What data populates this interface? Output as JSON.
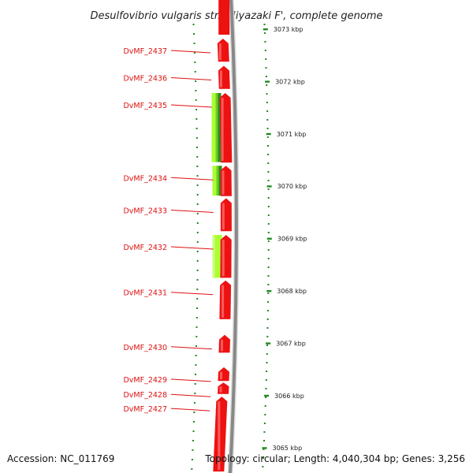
{
  "title": "Desulfovibrio vulgaris str. 'Miyazaki F', complete genome",
  "footer": {
    "accession": "Accession: NC_011769",
    "summary": "Topology: circular; Length: 4,040,304 bp; Genes: 3,256"
  },
  "colors": {
    "gene": "#ee1111",
    "gene_highlight": "#ff9a9a",
    "label": "#dd1111",
    "backbone": "#888888",
    "tick": "#228822",
    "light_green": "#aaff33",
    "dark_green": "#2c8a1e"
  },
  "genes": [
    {
      "id": "DvMF_2437",
      "label": "DvMF_2437",
      "start_kbp": 3072.82,
      "end_kbp": 3072.38,
      "strand": "+"
    },
    {
      "id": "DvMF_2436",
      "label": "DvMF_2436",
      "start_kbp": 3072.3,
      "end_kbp": 3071.86,
      "strand": "+"
    },
    {
      "id": "DvMF_2435",
      "label": "DvMF_2435",
      "start_kbp": 3071.78,
      "end_kbp": 3070.45,
      "strand": "+"
    },
    {
      "id": "DvMF_2434",
      "label": "DvMF_2434",
      "start_kbp": 3070.39,
      "end_kbp": 3069.81,
      "strand": "+"
    },
    {
      "id": "DvMF_2433",
      "label": "DvMF_2433",
      "start_kbp": 3069.77,
      "end_kbp": 3069.14,
      "strand": "+"
    },
    {
      "id": "DvMF_2432",
      "label": "DvMF_2432",
      "start_kbp": 3069.07,
      "end_kbp": 3068.25,
      "strand": "+"
    },
    {
      "id": "DvMF_2431",
      "label": "DvMF_2431",
      "start_kbp": 3068.2,
      "end_kbp": 3067.46,
      "strand": "+"
    },
    {
      "id": "DvMF_2430",
      "label": "DvMF_2430",
      "start_kbp": 3067.16,
      "end_kbp": 3066.82,
      "strand": "+"
    },
    {
      "id": "DvMF_2429",
      "label": "DvMF_2429",
      "start_kbp": 3066.54,
      "end_kbp": 3066.28,
      "strand": "+"
    },
    {
      "id": "DvMF_2428",
      "label": "DvMF_2428",
      "start_kbp": 3066.25,
      "end_kbp": 3066.03,
      "strand": "+"
    },
    {
      "id": "DvMF_2427",
      "label": "DvMF_2427",
      "start_kbp": 3065.98,
      "end_kbp": 3064.55,
      "strand": "+"
    }
  ],
  "scale_ticks": [
    {
      "kbp": 3073,
      "label": "3073 kbp"
    },
    {
      "kbp": 3072,
      "label": "3072 kbp"
    },
    {
      "kbp": 3071,
      "label": "3071 kbp"
    },
    {
      "kbp": 3070,
      "label": "3070 kbp"
    },
    {
      "kbp": 3069,
      "label": "3069 kbp"
    },
    {
      "kbp": 3068,
      "label": "3068 kbp"
    },
    {
      "kbp": 3067,
      "label": "3067 kbp"
    },
    {
      "kbp": 3066,
      "label": "3066 kbp"
    },
    {
      "kbp": 3065,
      "label": "3065 kbp"
    }
  ],
  "feature_tracks": [
    {
      "start_kbp": 3071.78,
      "end_kbp": 3070.46,
      "shade": "mixed"
    },
    {
      "start_kbp": 3070.39,
      "end_kbp": 3069.82,
      "shade": "mixed"
    },
    {
      "start_kbp": 3069.07,
      "end_kbp": 3068.25,
      "shade": "light"
    }
  ]
}
